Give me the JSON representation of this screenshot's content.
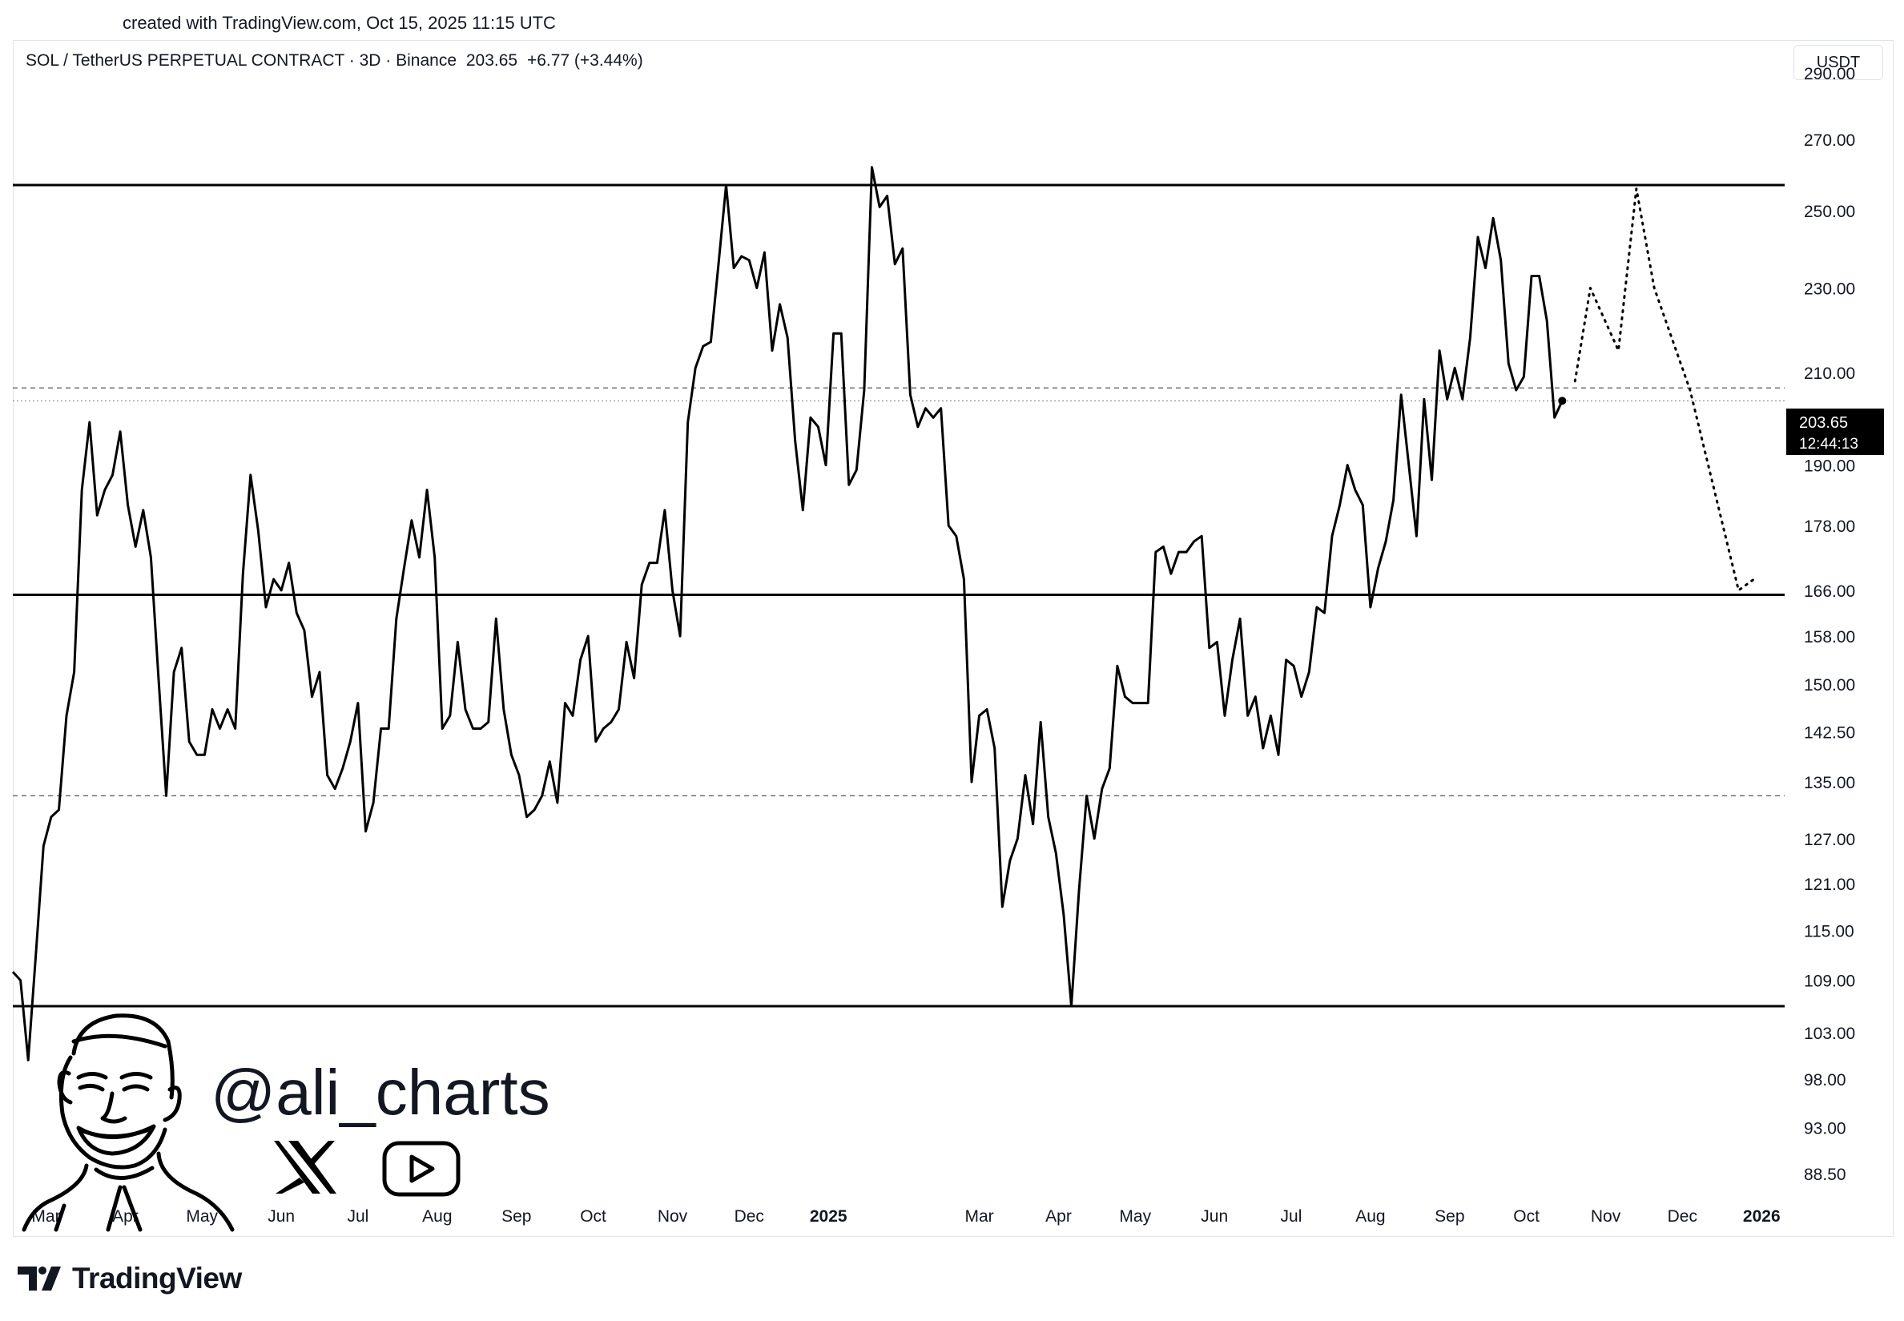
{
  "credit": "created with TradingView.com, Oct 15, 2025 11:15 UTC",
  "symbol": {
    "name": "SOL / TetherUS PERPETUAL CONTRACT · 3D · Binance",
    "price": "203.65",
    "change": "+6.77 (+3.44%)"
  },
  "unit_label": "USDT",
  "price_tag": {
    "price": "203.65",
    "countdown": "12:44:13"
  },
  "watermark": {
    "handle": "@ali_charts",
    "icons": [
      "x-logo-icon",
      "youtube-icon",
      "avatar-caricature"
    ]
  },
  "brand": "TradingView",
  "colors": {
    "line": "#000000",
    "tag_bg": "#000000",
    "tag_text": "#ffffff",
    "text": "#131722",
    "border": "#e0e3eb"
  },
  "chart_data": {
    "type": "line",
    "title": "",
    "y_scale": "log",
    "ylim": [
      86,
      300
    ],
    "xlim": [
      "2024-02-17",
      "2026-01-10"
    ],
    "y_ticks": [
      "290.00",
      "270.00",
      "250.00",
      "230.00",
      "210.00",
      "190.00",
      "178.00",
      "166.00",
      "158.00",
      "150.00",
      "142.50",
      "135.00",
      "127.00",
      "121.00",
      "115.00",
      "109.00",
      "103.00",
      "98.00",
      "93.00",
      "88.50"
    ],
    "x_ticks": [
      {
        "label": "Mar",
        "date": "2024-03-01",
        "bold": false
      },
      {
        "label": "Apr",
        "date": "2024-04-01",
        "bold": false
      },
      {
        "label": "May",
        "date": "2024-05-01",
        "bold": false
      },
      {
        "label": "Jun",
        "date": "2024-06-01",
        "bold": false
      },
      {
        "label": "Jul",
        "date": "2024-07-01",
        "bold": false
      },
      {
        "label": "Aug",
        "date": "2024-08-01",
        "bold": false
      },
      {
        "label": "Sep",
        "date": "2024-09-01",
        "bold": false
      },
      {
        "label": "Oct",
        "date": "2024-10-01",
        "bold": false
      },
      {
        "label": "Nov",
        "date": "2024-11-01",
        "bold": false
      },
      {
        "label": "Dec",
        "date": "2024-12-01",
        "bold": false
      },
      {
        "label": "2025",
        "date": "2025-01-01",
        "bold": true
      },
      {
        "label": "Mar",
        "date": "2025-03-01",
        "bold": false
      },
      {
        "label": "Apr",
        "date": "2025-04-01",
        "bold": false
      },
      {
        "label": "May",
        "date": "2025-05-01",
        "bold": false
      },
      {
        "label": "Jun",
        "date": "2025-06-01",
        "bold": false
      },
      {
        "label": "Jul",
        "date": "2025-07-01",
        "bold": false
      },
      {
        "label": "Aug",
        "date": "2025-08-01",
        "bold": false
      },
      {
        "label": "Sep",
        "date": "2025-09-01",
        "bold": false
      },
      {
        "label": "Oct",
        "date": "2025-10-01",
        "bold": false
      },
      {
        "label": "Nov",
        "date": "2025-11-01",
        "bold": false
      },
      {
        "label": "Dec",
        "date": "2025-12-01",
        "bold": false
      },
      {
        "label": "2026",
        "date": "2026-01-01",
        "bold": true
      }
    ],
    "series": [
      {
        "style": "solid",
        "points": [
          [
            "2024-02-17",
            110
          ],
          [
            "2024-02-20",
            109
          ],
          [
            "2024-02-23",
            100
          ],
          [
            "2024-02-26",
            112
          ],
          [
            "2024-02-29",
            126
          ],
          [
            "2024-03-03",
            130
          ],
          [
            "2024-03-06",
            131
          ],
          [
            "2024-03-09",
            145
          ],
          [
            "2024-03-12",
            152
          ],
          [
            "2024-03-15",
            185
          ],
          [
            "2024-03-18",
            199
          ],
          [
            "2024-03-21",
            180
          ],
          [
            "2024-03-24",
            185
          ],
          [
            "2024-03-27",
            188
          ],
          [
            "2024-03-30",
            197
          ],
          [
            "2024-04-02",
            182
          ],
          [
            "2024-04-05",
            174
          ],
          [
            "2024-04-08",
            181
          ],
          [
            "2024-04-11",
            172
          ],
          [
            "2024-04-14",
            151
          ],
          [
            "2024-04-17",
            133
          ],
          [
            "2024-04-20",
            152
          ],
          [
            "2024-04-23",
            156
          ],
          [
            "2024-04-26",
            141
          ],
          [
            "2024-04-29",
            139
          ],
          [
            "2024-05-02",
            139
          ],
          [
            "2024-05-05",
            146
          ],
          [
            "2024-05-08",
            143
          ],
          [
            "2024-05-11",
            146
          ],
          [
            "2024-05-14",
            143
          ],
          [
            "2024-05-17",
            169
          ],
          [
            "2024-05-20",
            188
          ],
          [
            "2024-05-23",
            177
          ],
          [
            "2024-05-26",
            163
          ],
          [
            "2024-05-29",
            168
          ],
          [
            "2024-06-01",
            166
          ],
          [
            "2024-06-04",
            171
          ],
          [
            "2024-06-07",
            162
          ],
          [
            "2024-06-10",
            159
          ],
          [
            "2024-06-13",
            148
          ],
          [
            "2024-06-16",
            152
          ],
          [
            "2024-06-19",
            136
          ],
          [
            "2024-06-22",
            134
          ],
          [
            "2024-06-25",
            137
          ],
          [
            "2024-06-28",
            141
          ],
          [
            "2024-07-01",
            147
          ],
          [
            "2024-07-04",
            128
          ],
          [
            "2024-07-07",
            132
          ],
          [
            "2024-07-10",
            143
          ],
          [
            "2024-07-13",
            143
          ],
          [
            "2024-07-16",
            161
          ],
          [
            "2024-07-19",
            170
          ],
          [
            "2024-07-22",
            179
          ],
          [
            "2024-07-25",
            172
          ],
          [
            "2024-07-28",
            185
          ],
          [
            "2024-07-31",
            172
          ],
          [
            "2024-08-03",
            143
          ],
          [
            "2024-08-06",
            145
          ],
          [
            "2024-08-09",
            157
          ],
          [
            "2024-08-12",
            146
          ],
          [
            "2024-08-15",
            143
          ],
          [
            "2024-08-18",
            143
          ],
          [
            "2024-08-21",
            144
          ],
          [
            "2024-08-24",
            161
          ],
          [
            "2024-08-27",
            146
          ],
          [
            "2024-08-30",
            139
          ],
          [
            "2024-09-02",
            136
          ],
          [
            "2024-09-05",
            130
          ],
          [
            "2024-09-08",
            131
          ],
          [
            "2024-09-11",
            133
          ],
          [
            "2024-09-14",
            138
          ],
          [
            "2024-09-17",
            132
          ],
          [
            "2024-09-20",
            147
          ],
          [
            "2024-09-23",
            145
          ],
          [
            "2024-09-26",
            154
          ],
          [
            "2024-09-29",
            158
          ],
          [
            "2024-10-02",
            141
          ],
          [
            "2024-10-05",
            143
          ],
          [
            "2024-10-08",
            144
          ],
          [
            "2024-10-11",
            146
          ],
          [
            "2024-10-14",
            157
          ],
          [
            "2024-10-17",
            151
          ],
          [
            "2024-10-20",
            167
          ],
          [
            "2024-10-23",
            171
          ],
          [
            "2024-10-26",
            171
          ],
          [
            "2024-10-29",
            181
          ],
          [
            "2024-11-01",
            166
          ],
          [
            "2024-11-04",
            158
          ],
          [
            "2024-11-07",
            199
          ],
          [
            "2024-11-10",
            211
          ],
          [
            "2024-11-13",
            216
          ],
          [
            "2024-11-16",
            217
          ],
          [
            "2024-11-19",
            236
          ],
          [
            "2024-11-22",
            257
          ],
          [
            "2024-11-25",
            235
          ],
          [
            "2024-11-28",
            238
          ],
          [
            "2024-12-01",
            237
          ],
          [
            "2024-12-04",
            230
          ],
          [
            "2024-12-07",
            239
          ],
          [
            "2024-12-10",
            215
          ],
          [
            "2024-12-13",
            226
          ],
          [
            "2024-12-16",
            218
          ],
          [
            "2024-12-19",
            195
          ],
          [
            "2024-12-22",
            181
          ],
          [
            "2024-12-25",
            200
          ],
          [
            "2024-12-28",
            198
          ],
          [
            "2024-12-31",
            190
          ],
          [
            "2025-01-03",
            219
          ],
          [
            "2025-01-06",
            219
          ],
          [
            "2025-01-09",
            186
          ],
          [
            "2025-01-12",
            189
          ],
          [
            "2025-01-15",
            206
          ],
          [
            "2025-01-18",
            262
          ],
          [
            "2025-01-21",
            251
          ],
          [
            "2025-01-24",
            254
          ],
          [
            "2025-01-27",
            236
          ],
          [
            "2025-01-30",
            240
          ],
          [
            "2025-02-02",
            205
          ],
          [
            "2025-02-05",
            198
          ],
          [
            "2025-02-08",
            202
          ],
          [
            "2025-02-11",
            200
          ],
          [
            "2025-02-14",
            202
          ],
          [
            "2025-02-17",
            178
          ],
          [
            "2025-02-20",
            176
          ],
          [
            "2025-02-23",
            168
          ],
          [
            "2025-02-26",
            135
          ],
          [
            "2025-03-01",
            145
          ],
          [
            "2025-03-04",
            146
          ],
          [
            "2025-03-07",
            140
          ],
          [
            "2025-03-10",
            118
          ],
          [
            "2025-03-13",
            124
          ],
          [
            "2025-03-16",
            127
          ],
          [
            "2025-03-19",
            136
          ],
          [
            "2025-03-22",
            129
          ],
          [
            "2025-03-25",
            144
          ],
          [
            "2025-03-28",
            130
          ],
          [
            "2025-03-31",
            125
          ],
          [
            "2025-04-03",
            117
          ],
          [
            "2025-04-06",
            106
          ],
          [
            "2025-04-09",
            120
          ],
          [
            "2025-04-12",
            133
          ],
          [
            "2025-04-15",
            127
          ],
          [
            "2025-04-18",
            134
          ],
          [
            "2025-04-21",
            137
          ],
          [
            "2025-04-24",
            153
          ],
          [
            "2025-04-27",
            148
          ],
          [
            "2025-04-30",
            147
          ],
          [
            "2025-05-03",
            147
          ],
          [
            "2025-05-06",
            147
          ],
          [
            "2025-05-09",
            173
          ],
          [
            "2025-05-12",
            174
          ],
          [
            "2025-05-15",
            169
          ],
          [
            "2025-05-18",
            173
          ],
          [
            "2025-05-21",
            173
          ],
          [
            "2025-05-24",
            175
          ],
          [
            "2025-05-27",
            176
          ],
          [
            "2025-05-30",
            156
          ],
          [
            "2025-06-02",
            157
          ],
          [
            "2025-06-05",
            145
          ],
          [
            "2025-06-08",
            154
          ],
          [
            "2025-06-11",
            161
          ],
          [
            "2025-06-14",
            145
          ],
          [
            "2025-06-17",
            148
          ],
          [
            "2025-06-20",
            140
          ],
          [
            "2025-06-23",
            145
          ],
          [
            "2025-06-26",
            139
          ],
          [
            "2025-06-29",
            154
          ],
          [
            "2025-07-02",
            153
          ],
          [
            "2025-07-05",
            148
          ],
          [
            "2025-07-08",
            152
          ],
          [
            "2025-07-11",
            163
          ],
          [
            "2025-07-14",
            162
          ],
          [
            "2025-07-17",
            176
          ],
          [
            "2025-07-20",
            182
          ],
          [
            "2025-07-23",
            190
          ],
          [
            "2025-07-26",
            185
          ],
          [
            "2025-07-29",
            182
          ],
          [
            "2025-08-01",
            163
          ],
          [
            "2025-08-04",
            170
          ],
          [
            "2025-08-07",
            175
          ],
          [
            "2025-08-10",
            183
          ],
          [
            "2025-08-13",
            205
          ],
          [
            "2025-08-16",
            190
          ],
          [
            "2025-08-19",
            176
          ],
          [
            "2025-08-22",
            204
          ],
          [
            "2025-08-25",
            187
          ],
          [
            "2025-08-28",
            215
          ],
          [
            "2025-08-31",
            204
          ],
          [
            "2025-09-03",
            211
          ],
          [
            "2025-09-06",
            204
          ],
          [
            "2025-09-09",
            218
          ],
          [
            "2025-09-12",
            243
          ],
          [
            "2025-09-15",
            235
          ],
          [
            "2025-09-18",
            248
          ],
          [
            "2025-09-21",
            237
          ],
          [
            "2025-09-24",
            212
          ],
          [
            "2025-09-27",
            206
          ],
          [
            "2025-09-30",
            209
          ],
          [
            "2025-10-03",
            233
          ],
          [
            "2025-10-06",
            233
          ],
          [
            "2025-10-09",
            222
          ],
          [
            "2025-10-12",
            200
          ],
          [
            "2025-10-15",
            203.65
          ]
        ]
      },
      {
        "style": "dotted",
        "points": [
          [
            "2025-10-20",
            208
          ],
          [
            "2025-10-26",
            230
          ],
          [
            "2025-11-06",
            215
          ],
          [
            "2025-11-13",
            256
          ],
          [
            "2025-11-20",
            230
          ],
          [
            "2025-12-04",
            206
          ],
          [
            "2025-12-23",
            166
          ],
          [
            "2025-12-29",
            168
          ]
        ]
      }
    ],
    "horizontal_levels": [
      {
        "value": 257.0,
        "style": "solid"
      },
      {
        "value": 206.5,
        "style": "dashed"
      },
      {
        "value": 203.65,
        "style": "dotted"
      },
      {
        "value": 165.2,
        "style": "solid"
      },
      {
        "value": 133.0,
        "style": "dashed"
      },
      {
        "value": 106.0,
        "style": "solid"
      }
    ],
    "markers": [
      {
        "date": "2025-10-15",
        "value": 203.65
      }
    ]
  }
}
